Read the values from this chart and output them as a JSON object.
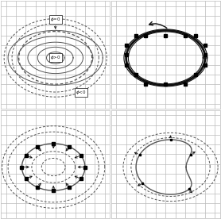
{
  "figsize": [
    2.78,
    2.76
  ],
  "dpi": 100,
  "grid_color": "#bbbbbb",
  "line_color": "#555555",
  "dark_color": "#111111",
  "bg_color": "#ffffff",
  "grid_step": 1,
  "xlim": [
    -5.5,
    5.5
  ],
  "ylim": [
    -5.5,
    5.5
  ]
}
